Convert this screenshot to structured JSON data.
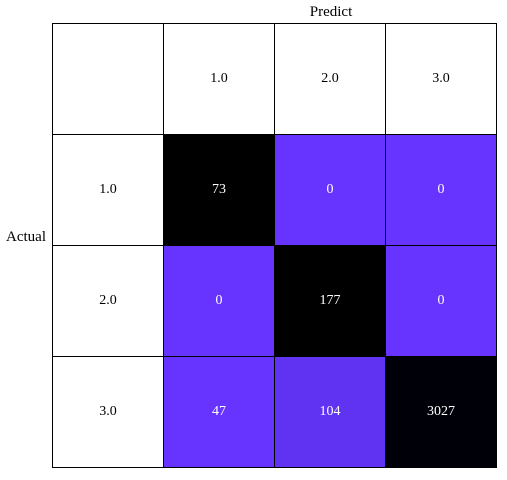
{
  "chart_data": {
    "type": "heatmap",
    "title": "Predict",
    "ylabel": "Actual",
    "x_labels": [
      "1.0",
      "2.0",
      "3.0"
    ],
    "y_labels": [
      "1.0",
      "2.0",
      "3.0"
    ],
    "values": [
      [
        73,
        0,
        0
      ],
      [
        0,
        177,
        0
      ],
      [
        47,
        104,
        3027
      ]
    ],
    "cell_colors": [
      [
        "#000000",
        "#6633ff",
        "#6633ff"
      ],
      [
        "#6633ff",
        "#000000",
        "#6633ff"
      ],
      [
        "#6633ff",
        "#6032f2",
        "#000008"
      ]
    ],
    "text_color": "#ffffff"
  }
}
